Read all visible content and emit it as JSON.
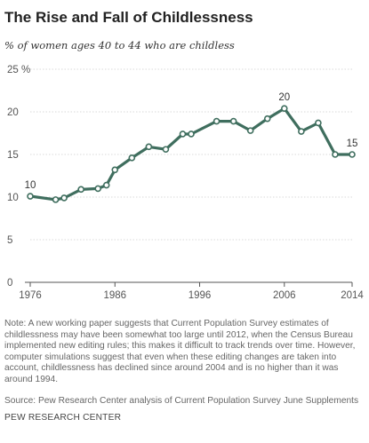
{
  "header": {
    "title": "The Rise and Fall of Childlessness",
    "subtitle": "% of women ages 40 to 44 who are childless"
  },
  "footer": {
    "note": "Note: A new working paper suggests that Current Population Survey estimates of childlessness may have been somewhat too large until 2012, when the Census Bureau implemented new editing rules; this makes it difficult to track trends over time. However, computer simulations suggest that even when these editing changes are taken into account, childlessness has declined since around 2004 and is no higher than it was around 1994.",
    "source": "Source: Pew Research Center analysis of Current Population Survey June Supplements",
    "brand": "PEW RESEARCH CENTER"
  },
  "colors": {
    "line": "#3f6e5e",
    "gridline": "#d9d9d9",
    "axis": "#555555"
  },
  "chart_data": {
    "type": "line",
    "title": "The Rise and Fall of Childlessness",
    "subtitle": "% of women ages 40 to 44 who are childless",
    "xlabel": "",
    "ylabel": "",
    "xlim": [
      1976,
      2014
    ],
    "ylim": [
      0,
      25
    ],
    "x_ticks": [
      "1976",
      "1986",
      "1996",
      "2006",
      "2014"
    ],
    "y_ticks": [
      "0",
      "5",
      "10",
      "15",
      "20",
      "25 %"
    ],
    "grid": true,
    "legend": "none",
    "series": [
      {
        "x": [
          1976,
          1979,
          1980,
          1982,
          1984,
          1985,
          1986,
          1988,
          1990,
          1992,
          1994,
          1995,
          1998,
          2000,
          2002,
          2004,
          2006,
          2008,
          2010,
          2012,
          2014
        ],
        "values": [
          10.1,
          9.7,
          9.9,
          10.9,
          11.0,
          11.4,
          13.2,
          14.6,
          15.9,
          15.6,
          17.4,
          17.4,
          18.9,
          18.9,
          17.8,
          19.2,
          20.4,
          17.7,
          18.7,
          15.0,
          15.0
        ]
      }
    ],
    "data_labels": [
      {
        "x": 1976,
        "y": 10.1,
        "text": "10"
      },
      {
        "x": 2006,
        "y": 20.4,
        "text": "20"
      },
      {
        "x": 2014,
        "y": 15.0,
        "text": "15"
      }
    ]
  }
}
